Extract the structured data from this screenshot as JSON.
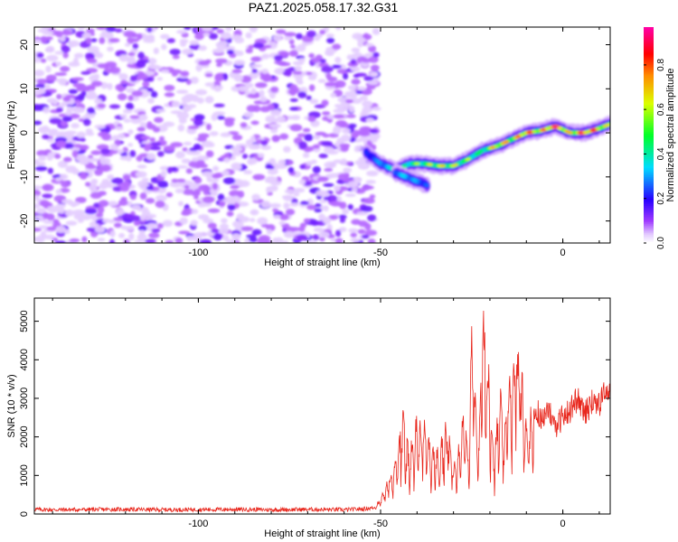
{
  "title": "PAZ1.2025.058.17.32.G31",
  "colors": {
    "axes": "#000000",
    "snr_line": "#e8261c",
    "background": "#ffffff"
  },
  "colormap": [
    "#ffffff",
    "#9a00ff",
    "#0000ff",
    "#00ffff",
    "#00ff00",
    "#ffff00",
    "#ff7f00",
    "#ff0000",
    "#ff00ff"
  ],
  "chart_data": [
    {
      "type": "heatmap",
      "title": "PAZ1.2025.058.17.32.G31",
      "xlabel": "Height of straight line (km)",
      "ylabel": "Frequency (Hz)",
      "xlim": [
        -145,
        13
      ],
      "ylim": [
        -25,
        24
      ],
      "x_ticks": [
        -100,
        -50,
        0
      ],
      "y_ticks": [
        -20,
        -10,
        0,
        10,
        20
      ],
      "colorbar": {
        "label": "Normalized spectral amplitude",
        "range": [
          0.0,
          0.97
        ],
        "ticks": [
          0.0,
          0.2,
          0.4,
          0.6,
          0.8
        ]
      },
      "noise_region": {
        "x_from": -145,
        "x_to": -51,
        "level_range": [
          0.02,
          0.12
        ]
      },
      "signal_ridge": {
        "x": [
          -54,
          -50,
          -46,
          -42,
          -38,
          -34,
          -30,
          -26,
          -22,
          -18,
          -14,
          -10,
          -6,
          -2,
          2,
          6,
          10,
          13
        ],
        "frequency_hz": [
          -4.5,
          -7,
          -8.5,
          -7,
          -7,
          -7.5,
          -7.5,
          -6,
          -4,
          -3,
          -1.5,
          0,
          0.5,
          1.5,
          0,
          0,
          1,
          2
        ],
        "amplitude": [
          0.25,
          0.35,
          0.45,
          0.5,
          0.55,
          0.62,
          0.6,
          0.55,
          0.5,
          0.75,
          0.65,
          0.85,
          0.7,
          0.95,
          0.65,
          0.9,
          0.8,
          0.55
        ]
      },
      "secondary_ridge": {
        "x": [
          -46,
          -43,
          -40,
          -37
        ],
        "frequency_hz": [
          -9,
          -10,
          -11,
          -12
        ],
        "amplitude": [
          0.35,
          0.4,
          0.35,
          0.3
        ]
      }
    },
    {
      "type": "line",
      "xlabel": "Height of straight line (km)",
      "ylabel": "SNR (10 * v/v)",
      "xlim": [
        -145,
        13
      ],
      "ylim": [
        0,
        5600
      ],
      "x_ticks": [
        -100,
        -50,
        0
      ],
      "y_ticks": [
        0,
        1000,
        2000,
        3000,
        4000,
        5000
      ],
      "series": [
        {
          "x": [
            -145,
            -140,
            -130,
            -120,
            -110,
            -100,
            -90,
            -80,
            -70,
            -60,
            -55,
            -52,
            -50,
            -48,
            -46,
            -45,
            -44,
            -42,
            -40,
            -38,
            -36,
            -34,
            -32,
            -30,
            -28,
            -27,
            -26,
            -25,
            -24,
            -23,
            -22,
            -21,
            -20,
            -19,
            -18,
            -17,
            -16,
            -15,
            -14,
            -13,
            -12,
            -11,
            -10,
            -8,
            -6,
            -4,
            -2,
            0,
            2,
            4,
            6,
            8,
            10,
            12,
            13
          ],
          "y": [
            120,
            110,
            115,
            120,
            110,
            115,
            120,
            110,
            120,
            110,
            130,
            160,
            400,
            900,
            1300,
            2000,
            2500,
            1500,
            2600,
            2200,
            1800,
            1500,
            2400,
            1200,
            2000,
            2800,
            1500,
            4700,
            3000,
            2000,
            5500,
            4000,
            3500,
            1500,
            2500,
            3000,
            1800,
            4200,
            3000,
            4500,
            3800,
            3200,
            2200,
            2800,
            2500,
            2700,
            2300,
            2500,
            2700,
            3000,
            2600,
            2900,
            2800,
            3300,
            3000
          ]
        }
      ]
    }
  ]
}
